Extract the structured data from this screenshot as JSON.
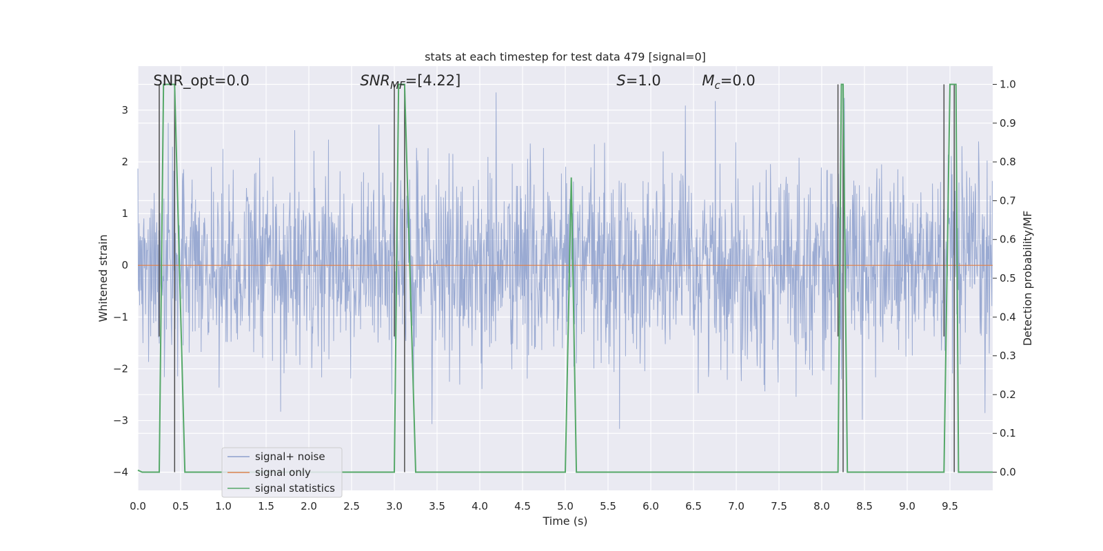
{
  "chart_data": {
    "type": "line",
    "title": "stats at each timestep for test data 479 [signal=0]",
    "xlabel": "Time (s)",
    "ylabel": "Whitened strain",
    "y2label": "Detection probability/MF",
    "xlim": [
      0,
      10
    ],
    "ylim": [
      -4.35,
      3.85
    ],
    "y2lim": [
      -0.047,
      1.047
    ],
    "x_ticks": [
      0.0,
      0.5,
      1.0,
      1.5,
      2.0,
      2.5,
      3.0,
      3.5,
      4.0,
      4.5,
      5.0,
      5.5,
      6.0,
      6.5,
      7.0,
      7.5,
      8.0,
      8.5,
      9.0,
      9.5
    ],
    "x_tick_labels": [
      "0.0",
      "0.5",
      "1.0",
      "1.5",
      "2.0",
      "2.5",
      "3.0",
      "3.5",
      "4.0",
      "4.5",
      "5.0",
      "5.5",
      "6.0",
      "6.5",
      "7.0",
      "7.5",
      "8.0",
      "8.5",
      "9.0",
      "9.5"
    ],
    "y_ticks": [
      3,
      2,
      1,
      0,
      -1,
      -2,
      -3,
      -4
    ],
    "y_tick_labels": [
      "3",
      "2",
      "1",
      "0",
      "−1",
      "−2",
      "−3",
      "−4"
    ],
    "y2_ticks": [
      1.0,
      0.9,
      0.8,
      0.7,
      0.6,
      0.5,
      0.4,
      0.3,
      0.2,
      0.1,
      0.0
    ],
    "y2_tick_labels": [
      "1.0",
      "0.9",
      "0.8",
      "0.7",
      "0.6",
      "0.5",
      "0.4",
      "0.3",
      "0.2",
      "0.1",
      "0.0"
    ],
    "grid": true,
    "legend_position": "lower-left",
    "series": [
      {
        "name": "signal+ noise",
        "color": "#8c9fcc",
        "style": "dense noise trace",
        "sample_rate_hz": 200,
        "typical_range": [
          -2.6,
          2.6
        ],
        "extremes": [
          3.5,
          -4.0
        ]
      },
      {
        "name": "signal only",
        "color": "#dd8452",
        "x": [
          0,
          10
        ],
        "y": [
          0,
          0
        ]
      },
      {
        "name": "signal statistics",
        "color": "#55a868",
        "axis": "right",
        "x": [
          0.0,
          0.05,
          0.25,
          0.3,
          0.43,
          0.55,
          3.0,
          3.05,
          3.12,
          3.25,
          5.0,
          5.07,
          5.13,
          8.19,
          8.23,
          8.25,
          8.3,
          9.43,
          9.5,
          9.57,
          9.6,
          10.0
        ],
        "y": [
          0.005,
          0.0,
          0.0,
          1.0,
          1.0,
          0.0,
          0.0,
          1.0,
          1.0,
          0.0,
          0.0,
          0.76,
          0.0,
          0.0,
          1.0,
          1.0,
          0.0,
          0.0,
          1.0,
          1.0,
          0.0,
          0.0
        ]
      },
      {
        "name": "",
        "color": "#4d4d4d",
        "axis": "right",
        "style": "vertical markers",
        "x": [
          0.25,
          0.43,
          3.0,
          3.12,
          8.19,
          8.25,
          9.43,
          9.55
        ],
        "y_top": [
          1.0,
          1.0,
          1.0,
          1.0,
          1.0,
          1.0,
          1.0,
          1.0
        ],
        "y_bottom": [
          0.35,
          0.0,
          0.35,
          0.0,
          0.35,
          0.0,
          0.35,
          0.0
        ]
      }
    ],
    "annotations": [
      {
        "x": 0.18,
        "text": "SNR_opt=0.0"
      },
      {
        "x": 2.6,
        "math": "SNR",
        "sub": "MF",
        "text": "=[4.22]"
      },
      {
        "x": 5.6,
        "math": "S",
        "text": "=1.0"
      },
      {
        "x": 6.6,
        "math": "M",
        "sub": "c",
        "text": "=0.0"
      }
    ]
  }
}
